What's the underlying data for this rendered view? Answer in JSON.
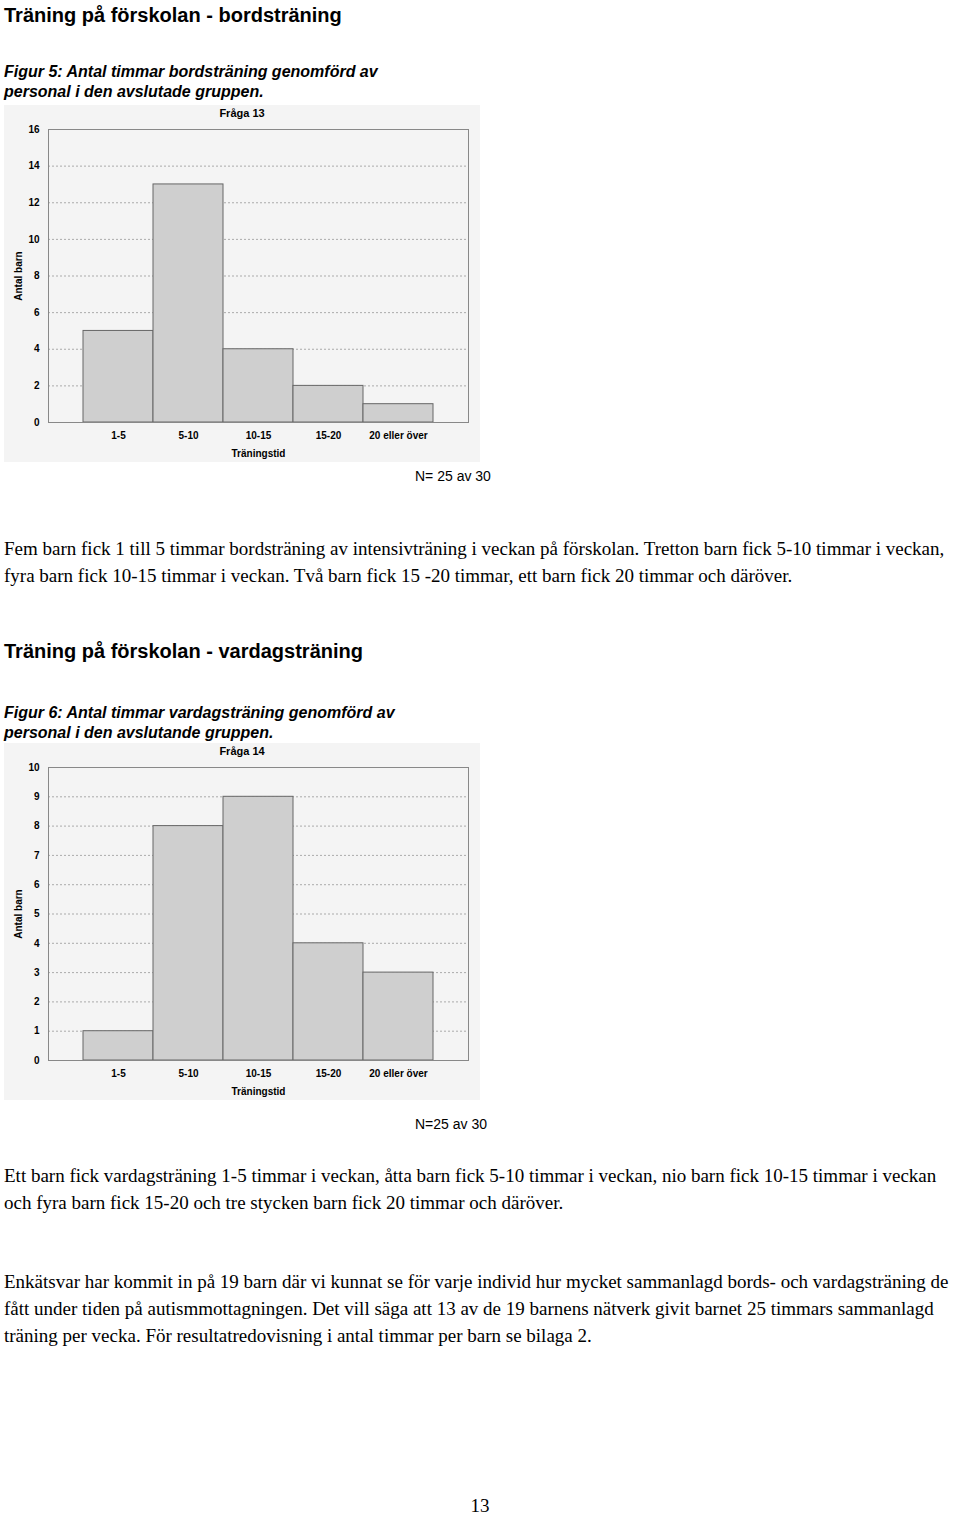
{
  "chart_data": [
    {
      "type": "bar",
      "title": "Fråga 13",
      "x_label": "Träningstid",
      "y_label": "Antal barn",
      "categories": [
        "1-5",
        "5-10",
        "10-15",
        "15-20",
        "20 eller över"
      ],
      "values": [
        5,
        13,
        4,
        2,
        1
      ],
      "color": "#cfcfcf",
      "ylim": [
        0,
        16
      ],
      "yticks": [
        0,
        2,
        4,
        6,
        8,
        10,
        12,
        14,
        16
      ],
      "grid": true
    },
    {
      "type": "bar",
      "title": "Fråga 14",
      "x_label": "Träningstid",
      "y_label": "Antal barn",
      "categories": [
        "1-5",
        "5-10",
        "10-15",
        "15-20",
        "20 eller över"
      ],
      "values": [
        1,
        8,
        9,
        4,
        3
      ],
      "color": "#cfcfcf",
      "ylim": [
        0,
        10
      ],
      "yticks": [
        0,
        1,
        2,
        3,
        4,
        5,
        6,
        7,
        8,
        9,
        10
      ],
      "grid": true
    }
  ],
  "page": {
    "sections": [
      {
        "heading": "Träning på förskolan - bordsträning",
        "caption": "Figur 5: Antal timmar bordsträning genomförd av personal i den avslutade gruppen.",
        "note": "N= 25 av 30",
        "text": "Fem barn fick 1 till 5 timmar bordsträning av intensivträning i veckan på förskolan. Tretton barn fick 5-10 timmar i veckan, fyra barn fick 10-15 timmar i veckan. Två barn fick 15 -20 timmar, ett barn fick 20 timmar och däröver."
      },
      {
        "heading": "Träning på förskolan - vardagsträning",
        "caption": "Figur 6: Antal timmar vardagsträning genomförd av personal i den avslutande gruppen.",
        "note": "N=25 av 30",
        "text": "Ett barn fick vardagsträning 1-5 timmar i veckan, åtta barn fick 5-10 timmar i veckan, nio barn fick 10-15 timmar i veckan och fyra barn fick 15-20 och tre stycken barn fick 20 timmar och däröver."
      }
    ],
    "closing": "Enkätsvar har kommit in på 19 barn där vi kunnat se för varje individ hur mycket sammanlagd bords- och vardagsträning de fått under tiden på autismmottagningen. Det vill säga att 13 av de 19 barnens nätverk givit barnet 25 timmars sammanlagd träning per vecka. För resultatredovisning i antal timmar per barn se bilaga 2.",
    "page_number": 13
  }
}
